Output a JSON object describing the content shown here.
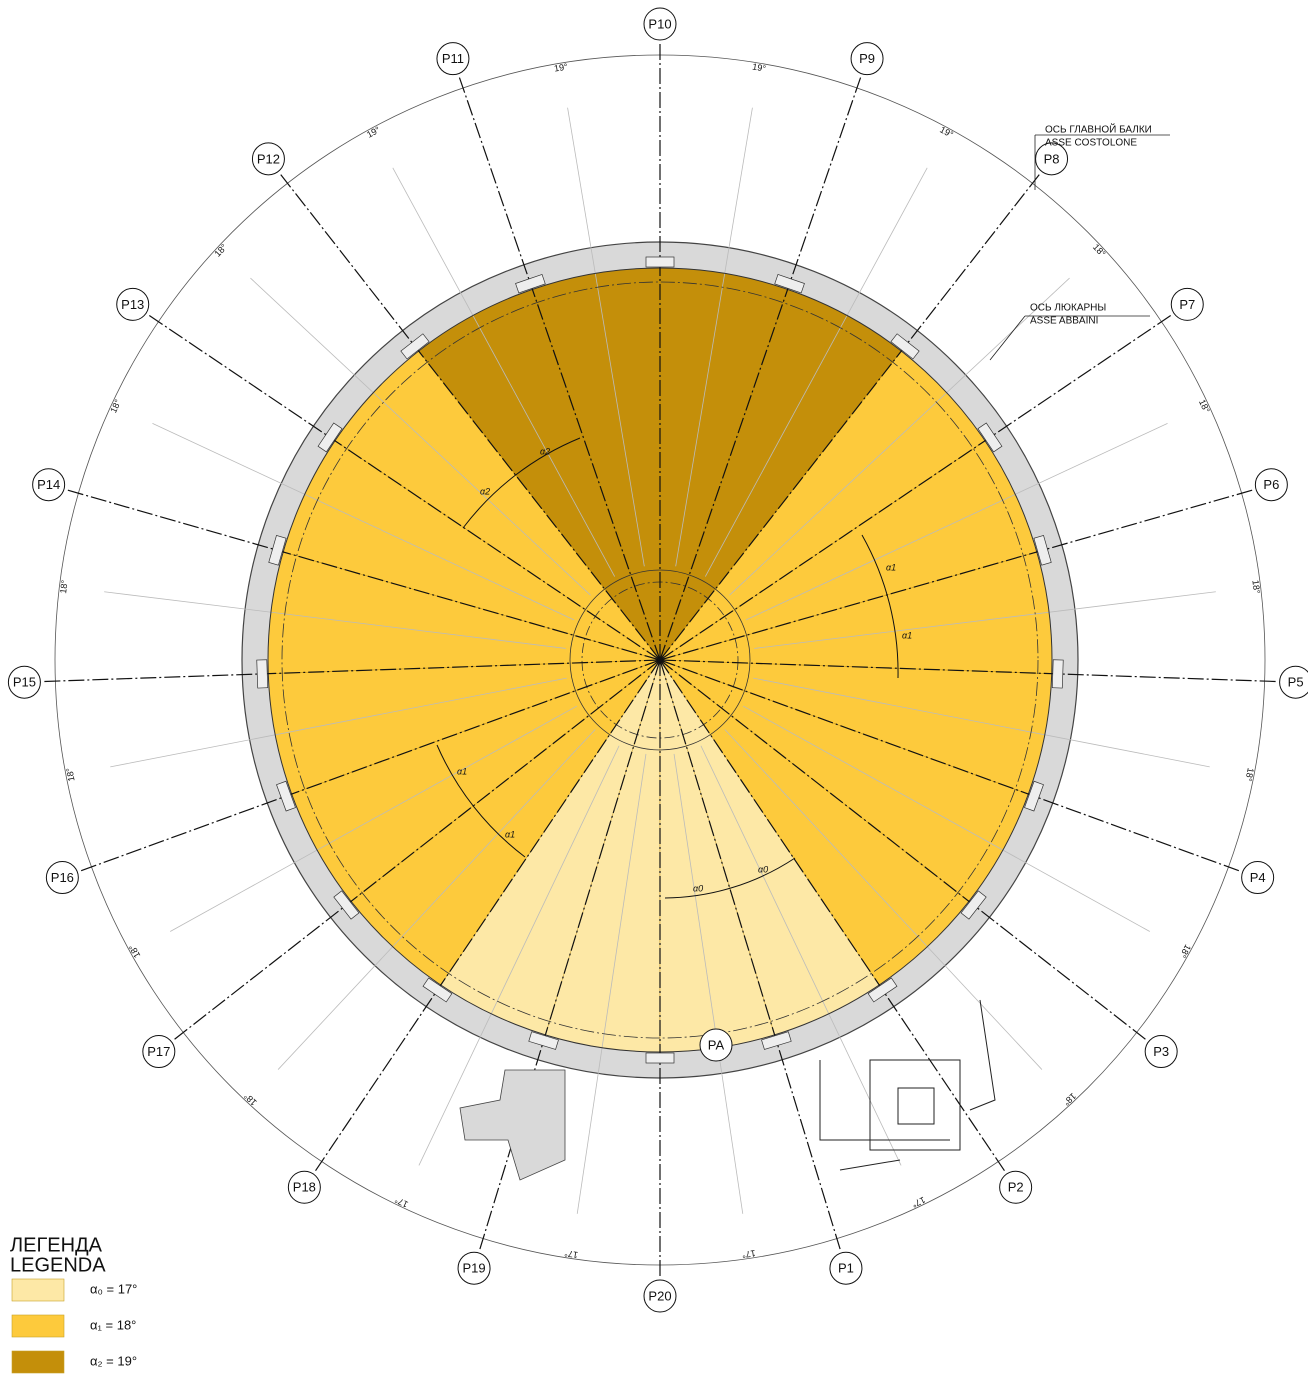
{
  "plan": {
    "axes": [
      "P1",
      "P2",
      "P3",
      "P4",
      "P5",
      "P6",
      "P7",
      "P8",
      "P9",
      "P10",
      "P11",
      "P12",
      "P13",
      "P14",
      "P15",
      "P16",
      "P17",
      "P18",
      "P19",
      "P20"
    ],
    "spacings": [
      {
        "value": 17,
        "label": "17°"
      },
      {
        "value": 18,
        "label": "18°"
      },
      {
        "value": 18,
        "label": "18°"
      },
      {
        "value": 18,
        "label": "18°"
      },
      {
        "value": 18,
        "label": "18°"
      },
      {
        "value": 18,
        "label": "18°"
      },
      {
        "value": 18,
        "label": "18°"
      },
      {
        "value": 19,
        "label": "19°"
      },
      {
        "value": 19,
        "label": "19°"
      },
      {
        "value": 19,
        "label": "19°"
      },
      {
        "value": 19,
        "label": "19°"
      },
      {
        "value": 18,
        "label": "18°"
      },
      {
        "value": 18,
        "label": "18°"
      },
      {
        "value": 18,
        "label": "18°"
      },
      {
        "value": 18,
        "label": "18°"
      },
      {
        "value": 18,
        "label": "18°"
      },
      {
        "value": 18,
        "label": "18°"
      },
      {
        "value": 17,
        "label": "17°"
      },
      {
        "value": 17,
        "label": "17°"
      },
      {
        "value": 17,
        "label": "17°"
      }
    ],
    "center_label": "PA",
    "angle_marks": [
      "α2",
      "α2",
      "α1",
      "α1",
      "α1",
      "α1",
      "α0",
      "α0"
    ],
    "annotations": [
      {
        "ru": "ОСЬ ГЛАВНОЙ БАЛКИ",
        "it": "ASSE COSTOLONE"
      },
      {
        "ru": "ОСЬ ЛЮКАРНЫ",
        "it": "ASSE ABBAINI"
      }
    ]
  },
  "legend": {
    "title_ru": "ЛЕГЕНДА",
    "title_it": "LEGENDA",
    "items": [
      {
        "label": "α₀ = 17°",
        "value": 17,
        "color": "#fde8a6"
      },
      {
        "label": "α₁ = 18°",
        "value": 18,
        "color": "#fdca3c"
      },
      {
        "label": "α₂ = 19°",
        "value": 19,
        "color": "#c48f0a"
      }
    ]
  }
}
